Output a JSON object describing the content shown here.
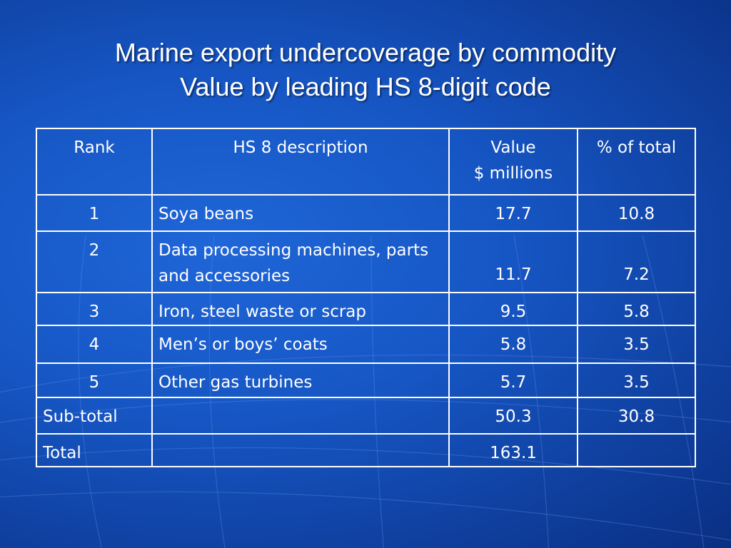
{
  "slide": {
    "title_line1": "Marine export undercoverage by commodity",
    "title_line2": "Value by leading HS 8-digit code"
  },
  "table": {
    "headers": {
      "rank": "Rank",
      "description": "HS 8 description",
      "value_line1": "Value",
      "value_line2": "$ millions",
      "percent": "% of total"
    },
    "rows": [
      {
        "rank": "1",
        "description": "Soya beans",
        "value": "17.7",
        "percent": "10.8"
      },
      {
        "rank": "2",
        "description": "Data processing machines, parts and accessories",
        "value": "11.7",
        "percent": "7.2"
      },
      {
        "rank": "3",
        "description": "Iron, steel waste or scrap",
        "value": "9.5",
        "percent": "5.8"
      },
      {
        "rank": "4",
        "description": "Men’s or boys’ coats",
        "value": "5.8",
        "percent": "3.5"
      },
      {
        "rank": "5",
        "description": "Other gas turbines",
        "value": "5.7",
        "percent": "3.5"
      }
    ],
    "subtotal": {
      "label": "Sub-total",
      "value": "50.3",
      "percent": "30.8"
    },
    "total": {
      "label": "Total",
      "value": "163.1"
    }
  }
}
